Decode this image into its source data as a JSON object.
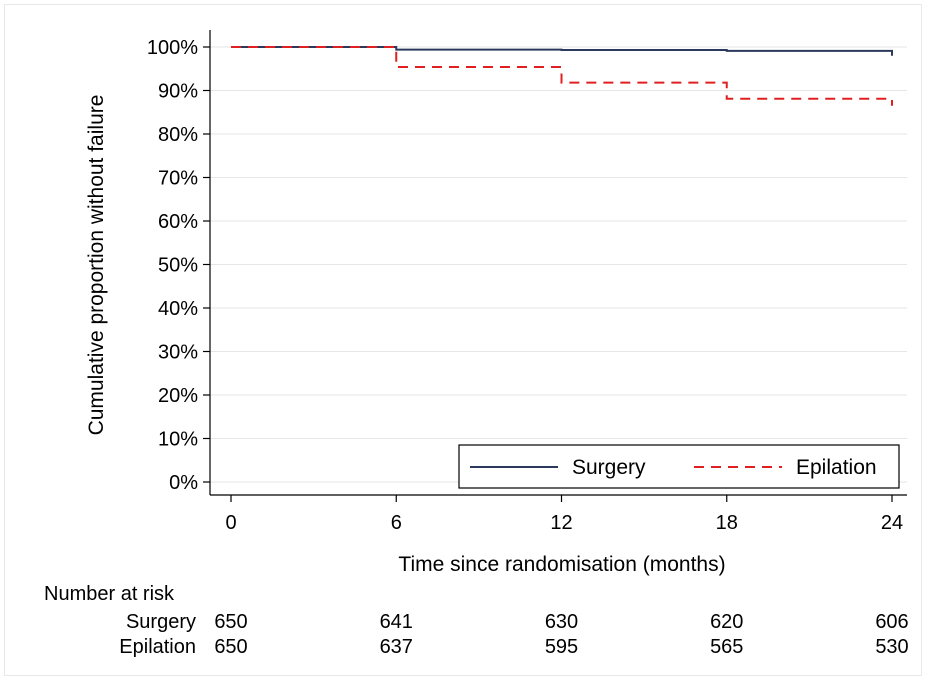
{
  "chart_data": {
    "type": "line",
    "step": true,
    "title": "",
    "xlabel": "Time since randomisation (months)",
    "ylabel": "Cumulative proportion without failure",
    "xlim": [
      0,
      24
    ],
    "ylim": [
      0,
      100
    ],
    "x_ticks": [
      0,
      6,
      12,
      18,
      24
    ],
    "y_ticks": [
      0,
      10,
      20,
      30,
      40,
      50,
      60,
      70,
      80,
      90,
      100
    ],
    "y_tick_labels": [
      "0%",
      "10%",
      "20%",
      "30%",
      "40%",
      "50%",
      "60%",
      "70%",
      "80%",
      "90%",
      "100%"
    ],
    "grid": true,
    "legend": "bottom-right",
    "series": [
      {
        "name": "Surgery",
        "color": "#2b3a5c",
        "style": "solid",
        "x": [
          0,
          6,
          12,
          18,
          24
        ],
        "y": [
          100,
          99.4,
          99.3,
          99.1,
          98.0
        ]
      },
      {
        "name": "Epilation",
        "color": "#e02020",
        "style": "dashed",
        "x": [
          0,
          6,
          12,
          18,
          24
        ],
        "y": [
          100,
          95.4,
          91.8,
          88.1,
          86.5
        ]
      }
    ],
    "risk_table": {
      "heading": "Number at risk",
      "times": [
        0,
        6,
        12,
        18,
        24
      ],
      "rows": [
        {
          "label": "Surgery",
          "counts": [
            "650",
            "641",
            "630",
            "620",
            "606"
          ]
        },
        {
          "label": "Epilation",
          "counts": [
            "650",
            "637",
            "595",
            "565",
            "530"
          ]
        }
      ]
    }
  }
}
